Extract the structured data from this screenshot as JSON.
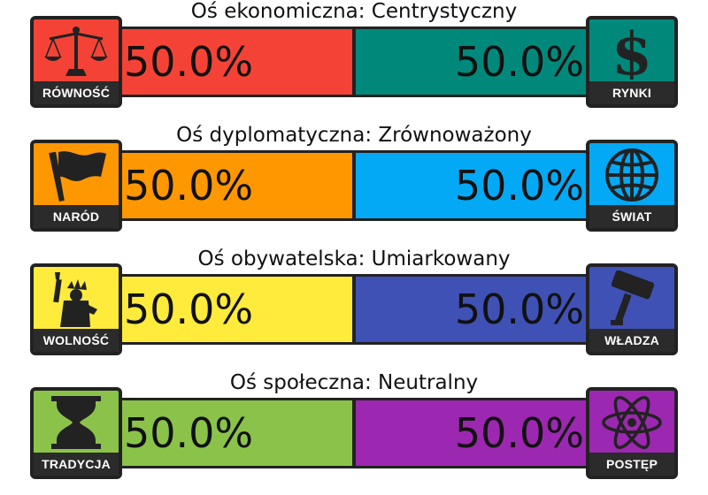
{
  "colors": {
    "frame": "#222222",
    "label_bg": "#2b2b2b"
  },
  "axes": [
    {
      "title": "Oś ekonomiczna: Centrystyczny",
      "left": {
        "label": "RÓWNOŚĆ",
        "icon": "scales-icon",
        "color": "#f44336",
        "percent": 50.0,
        "value_text": "50.0%"
      },
      "right": {
        "label": "RYNKI",
        "icon": "dollar-icon",
        "color": "#00897b",
        "percent": 50.0,
        "value_text": "50.0%"
      }
    },
    {
      "title": "Oś dyplomatyczna: Zrównoważony",
      "left": {
        "label": "NARÓD",
        "icon": "flag-icon",
        "color": "#ff9800",
        "percent": 50.0,
        "value_text": "50.0%"
      },
      "right": {
        "label": "ŚWIAT",
        "icon": "globe-icon",
        "color": "#03a9f4",
        "percent": 50.0,
        "value_text": "50.0%"
      }
    },
    {
      "title": "Oś obywatelska: Umiarkowany",
      "left": {
        "label": "WOLNOŚĆ",
        "icon": "liberty-icon",
        "color": "#ffeb3b",
        "percent": 50.0,
        "value_text": "50.0%"
      },
      "right": {
        "label": "WŁADZA",
        "icon": "gavel-icon",
        "color": "#3f51b5",
        "percent": 50.0,
        "value_text": "50.0%"
      }
    },
    {
      "title": "Oś społeczna: Neutralny",
      "left": {
        "label": "TRADYCJA",
        "icon": "hourglass-icon",
        "color": "#8bc34a",
        "percent": 50.0,
        "value_text": "50.0%"
      },
      "right": {
        "label": "POSTĘP",
        "icon": "atom-icon",
        "color": "#9c27b0",
        "percent": 50.0,
        "value_text": "50.0%"
      }
    }
  ]
}
